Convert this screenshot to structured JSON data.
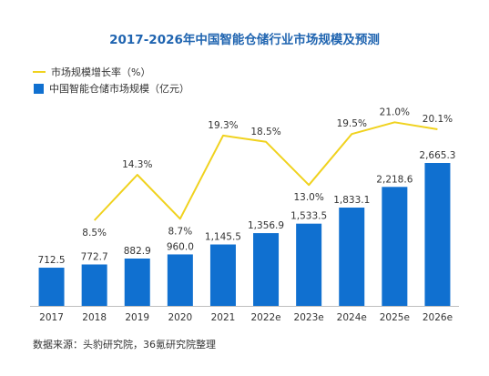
{
  "title": "2017-2026年中国智能仓储行业市场规模及预测",
  "source": "数据来源：头豹研究院，36氪研究院整理",
  "colors": {
    "bar": "#1070d0",
    "line": "#f0d21e",
    "title": "#1f64b0"
  },
  "chart_data": {
    "type": "bar",
    "title": "2017-2026年中国智能仓储行业市场规模及预测",
    "categories": [
      "2017",
      "2018",
      "2019",
      "2020",
      "2021",
      "2022e",
      "2023e",
      "2024e",
      "2025e",
      "2026e"
    ],
    "series": [
      {
        "name": "中国智能仓储市场规模（亿元）",
        "type": "bar",
        "values": [
          712.5,
          772.7,
          882.9,
          960.0,
          1145.5,
          1356.9,
          1533.5,
          1833.1,
          2218.6,
          2665.3
        ],
        "labels": [
          "712.5",
          "772.7",
          "882.9",
          "960.0",
          "1,145.5",
          "1,356.9",
          "1,533.5",
          "1,833.1",
          "2,218.6",
          "2,665.3"
        ]
      },
      {
        "name": "市场规模增长率（%）",
        "type": "line",
        "values": [
          null,
          8.5,
          14.3,
          8.7,
          19.3,
          18.5,
          13.0,
          19.5,
          21.0,
          20.1
        ],
        "labels": [
          "",
          "8.5%",
          "14.3%",
          "8.7%",
          "19.3%",
          "18.5%",
          "13.0%",
          "19.5%",
          "21.0%",
          "20.1%"
        ]
      }
    ],
    "legend": [
      "市场规模增长率（%）",
      "中国智能仓储市场规模（亿元）"
    ],
    "legend_position": "top-left",
    "grid": false
  }
}
